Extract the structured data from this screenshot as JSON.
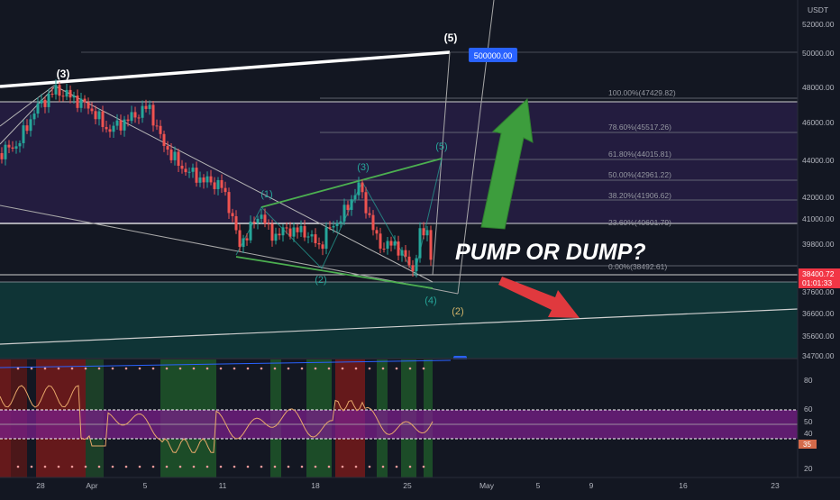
{
  "currency": "USDT",
  "price_axis": {
    "labels": [
      "52000.00",
      "50000.00",
      "48000.00",
      "46000.00",
      "44000.00",
      "42000.00",
      "41000.00",
      "39800.00",
      "37600.00",
      "36600.00",
      "35600.00",
      "34700.00"
    ],
    "current_price": "38400.72",
    "countdown": "01:01:33",
    "target_badge": "500000.00"
  },
  "time_axis": [
    "28",
    "Apr",
    "5",
    "11",
    "18",
    "25",
    "May",
    "5",
    "9",
    "16",
    "23"
  ],
  "fib_levels": [
    {
      "label": "100.00%(47429.82)"
    },
    {
      "label": "78.60%(45517.26)"
    },
    {
      "label": "61.80%(44015.81)"
    },
    {
      "label": "50.00%(42961.22)"
    },
    {
      "label": "38.20%(41906.62)"
    },
    {
      "label": "23.60%(40601.79)"
    },
    {
      "label": "0.00%(38492.61)"
    }
  ],
  "wave_labels": {
    "major_3": "(3)",
    "major_5": "(5)",
    "major_2": "(2)",
    "minor_1": "(1)",
    "minor_2": "(2)",
    "minor_3": "(3)",
    "minor_4": "(4)",
    "minor_5": "(5)"
  },
  "headline": "PUMP OR DUMP?",
  "indicator": {
    "axis_labels": [
      "80",
      "60",
      "50",
      "40",
      "35",
      "20"
    ],
    "marker": "60"
  },
  "colors": {
    "background": "#131722",
    "purple_zone": "#2a1f4a",
    "teal_zone": "#0f3a3a",
    "up_arrow": "#3d9d3d",
    "down_arrow": "#e0393e",
    "price_badge": "#f23645",
    "target_badge": "#2962ff",
    "wave_green": "#26a69a",
    "wave_gold": "#d4b46a"
  }
}
